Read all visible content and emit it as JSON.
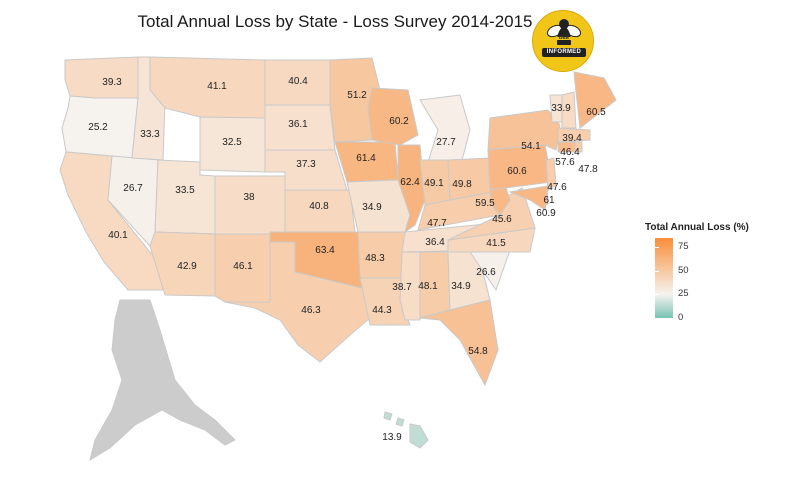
{
  "title": "Total Annual Loss by State - Loss Survey 2014-2015",
  "logo": {
    "text_top": "BEE",
    "text_bottom": "INFORMED"
  },
  "legend": {
    "title": "Total Annual Loss (%)",
    "ticks": [
      {
        "value": 75,
        "label": "75"
      },
      {
        "value": 50,
        "label": "50"
      },
      {
        "value": 25,
        "label": "25"
      },
      {
        "value": 0,
        "label": "0"
      }
    ],
    "scale": {
      "low": "#79c2b5",
      "mid": "#f6f3ef",
      "high": "#f98e3a",
      "low_value": 0,
      "mid_value": 25,
      "high_value": 85
    }
  },
  "no_data_color": "#cccccc",
  "states": [
    {
      "id": "WA",
      "label": "39.3",
      "value": 39.3
    },
    {
      "id": "OR",
      "label": "25.2",
      "value": 25.2
    },
    {
      "id": "CA",
      "label": "40.1",
      "value": 40.1
    },
    {
      "id": "NV",
      "label": "26.7",
      "value": 26.7
    },
    {
      "id": "ID",
      "label": "33.3",
      "value": 33.3
    },
    {
      "id": "MT",
      "label": "41.1",
      "value": 41.1
    },
    {
      "id": "WY",
      "label": "32.5",
      "value": 32.5
    },
    {
      "id": "UT",
      "label": "33.5",
      "value": 33.5
    },
    {
      "id": "AZ",
      "label": "42.9",
      "value": 42.9
    },
    {
      "id": "CO",
      "label": "38",
      "value": 38
    },
    {
      "id": "NM",
      "label": "46.1",
      "value": 46.1
    },
    {
      "id": "ND",
      "label": "40.4",
      "value": 40.4
    },
    {
      "id": "SD",
      "label": "36.1",
      "value": 36.1
    },
    {
      "id": "NE",
      "label": "37.3",
      "value": 37.3
    },
    {
      "id": "KS",
      "label": "40.8",
      "value": 40.8
    },
    {
      "id": "OK",
      "label": "63.4",
      "value": 63.4
    },
    {
      "id": "TX",
      "label": "46.3",
      "value": 46.3
    },
    {
      "id": "MN",
      "label": "51.2",
      "value": 51.2
    },
    {
      "id": "IA",
      "label": "61.4",
      "value": 61.4
    },
    {
      "id": "MO",
      "label": "34.9",
      "value": 34.9
    },
    {
      "id": "AR",
      "label": "48.3",
      "value": 48.3
    },
    {
      "id": "LA",
      "label": "44.3",
      "value": 44.3
    },
    {
      "id": "WI",
      "label": "60.2",
      "value": 60.2
    },
    {
      "id": "IL",
      "label": "62.4",
      "value": 62.4
    },
    {
      "id": "MI",
      "label": "27.7",
      "value": 27.7
    },
    {
      "id": "IN",
      "label": "49.1",
      "value": 49.1
    },
    {
      "id": "OH",
      "label": "49.8",
      "value": 49.8
    },
    {
      "id": "KY",
      "label": "47.7",
      "value": 47.7
    },
    {
      "id": "TN",
      "label": "36.4",
      "value": 36.4
    },
    {
      "id": "MS",
      "label": "38.7",
      "value": 38.7
    },
    {
      "id": "AL",
      "label": "48.1",
      "value": 48.1
    },
    {
      "id": "GA",
      "label": "34.9",
      "value": 34.9
    },
    {
      "id": "FL",
      "label": "54.8",
      "value": 54.8
    },
    {
      "id": "SC",
      "label": "26.6",
      "value": 26.6
    },
    {
      "id": "NC",
      "label": "41.5",
      "value": 41.5
    },
    {
      "id": "VA",
      "label": "45.6",
      "value": 45.6
    },
    {
      "id": "WV",
      "label": "59.5",
      "value": 59.5
    },
    {
      "id": "PA",
      "label": "60.6",
      "value": 60.6
    },
    {
      "id": "NY",
      "label": "54.1",
      "value": 54.1
    },
    {
      "id": "VT",
      "label": "33.9",
      "value": 33.9
    },
    {
      "id": "NH",
      "label": "39.4",
      "value": 39.4
    },
    {
      "id": "ME",
      "label": "60.5",
      "value": 60.5
    },
    {
      "id": "MA",
      "label": "46.4",
      "value": 46.4
    },
    {
      "id": "CT",
      "label": "57.6",
      "value": 57.6
    },
    {
      "id": "RI",
      "label": "47.8",
      "value": 47.8
    },
    {
      "id": "NJ",
      "label": "47.6",
      "value": 47.6
    },
    {
      "id": "DE",
      "label": "61",
      "value": 61
    },
    {
      "id": "MD",
      "label": "60.9",
      "value": 60.9
    },
    {
      "id": "HI",
      "label": "13.9",
      "value": 13.9
    },
    {
      "id": "AK",
      "label": "",
      "value": null
    }
  ]
}
